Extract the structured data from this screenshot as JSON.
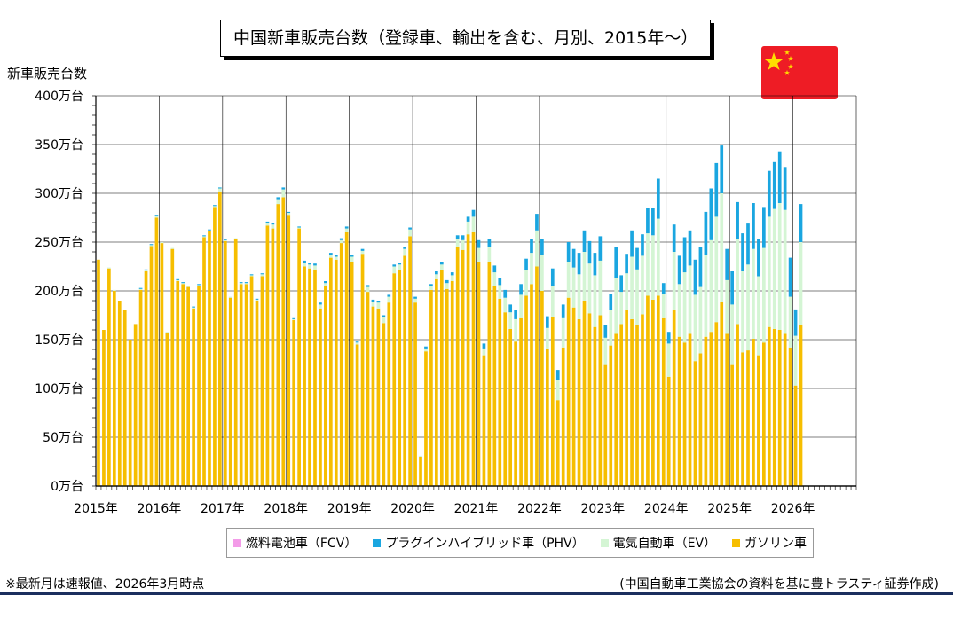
{
  "title": "中国新車販売台数（登録車、輸出を含む、月別、2015年～）",
  "note": "※最新月は速報値、2026年3月時点",
  "source": "(中国自動車工業協会の資料を基に豊トラスティ証券作成)",
  "colors": {
    "fcv": "#f39be8",
    "phv": "#1aa6e0",
    "ev": "#d4f5d4",
    "gasoline": "#f6be00",
    "grid": "#000000",
    "rule": "#1b2f5e",
    "flag_red": "#ee1c25",
    "flag_star": "#ffde00"
  },
  "chart_data": {
    "type": "bar",
    "stacked": true,
    "title": "中国新車販売台数（登録車、輸出を含む、月別、2015年～）",
    "ylabel": "新車販売台数",
    "xlabel": "",
    "ylim": [
      0,
      400
    ],
    "unit": "万台",
    "yticks": [
      0,
      50,
      100,
      150,
      200,
      250,
      300,
      350,
      400
    ],
    "ytick_labels": [
      "0万台",
      "50万台",
      "100万台",
      "150万台",
      "200万台",
      "250万台",
      "300万台",
      "350万台",
      "400万台"
    ],
    "x_start": "2015-01",
    "x_slots": 144,
    "year_labels": [
      "2015年",
      "2016年",
      "2017年",
      "2018年",
      "2019年",
      "2020年",
      "2021年",
      "2022年",
      "2023年",
      "2024年",
      "2025年",
      "2026年"
    ],
    "legend": [
      "燃料電池車（FCV）",
      "プラグインハイブリッド車（PHV）",
      "電気自動車（EV）",
      "ガソリン車"
    ],
    "legend_position": "bottom",
    "totals": [
      232,
      160,
      224,
      201,
      190,
      180,
      150,
      166,
      203,
      222,
      248,
      278,
      250,
      158,
      244,
      212,
      209,
      205,
      184,
      207,
      257,
      263,
      288,
      306,
      253,
      194,
      254,
      209,
      209,
      217,
      192,
      218,
      271,
      270,
      296,
      306,
      281,
      172,
      266,
      231,
      229,
      228,
      188,
      210,
      239,
      237,
      254,
      266,
      237,
      148,
      243,
      206,
      191,
      190,
      175,
      196,
      227,
      229,
      245,
      265,
      194,
      31,
      143,
      207,
      220,
      230,
      211,
      219,
      257,
      257,
      276,
      283,
      252,
      146,
      253,
      226,
      213,
      201,
      186,
      180,
      207,
      233,
      253,
      279,
      253,
      174,
      223,
      119,
      186,
      250,
      243,
      239,
      262,
      251,
      239,
      256,
      165,
      197,
      245,
      216,
      238,
      262,
      244,
      258,
      285,
      285,
      315,
      208,
      158,
      268,
      236,
      255,
      262,
      232,
      245,
      281,
      305,
      331,
      349,
      243,
      220,
      291,
      259,
      269,
      290,
      253,
      286,
      323,
      332,
      343,
      327,
      234,
      181,
      289
    ],
    "gasoline": [
      232,
      160,
      223,
      200,
      190,
      180,
      150,
      166,
      201,
      220,
      246,
      275,
      249,
      157,
      243,
      210,
      207,
      204,
      182,
      205,
      255,
      261,
      286,
      302,
      251,
      193,
      253,
      207,
      207,
      215,
      190,
      215,
      267,
      264,
      289,
      296,
      278,
      170,
      264,
      225,
      223,
      222,
      182,
      205,
      234,
      232,
      249,
      260,
      230,
      145,
      238,
      199,
      184,
      182,
      167,
      188,
      218,
      221,
      236,
      256,
      188,
      30,
      138,
      201,
      212,
      221,
      202,
      210,
      245,
      242,
      258,
      260,
      230,
      134,
      230,
      205,
      192,
      178,
      161,
      148,
      172,
      195,
      207,
      225,
      200,
      140,
      173,
      88,
      142,
      193,
      183,
      171,
      190,
      177,
      163,
      175,
      124,
      144,
      156,
      166,
      181,
      171,
      165,
      176,
      195,
      191,
      195,
      172,
      112,
      181,
      153,
      147,
      156,
      128,
      136,
      153,
      158,
      168,
      189,
      156,
      124,
      166,
      137,
      139,
      151,
      134,
      147,
      163,
      161,
      160,
      156,
      142,
      103,
      165
    ],
    "ev": [
      0,
      0,
      1,
      1,
      0,
      0,
      0,
      0,
      1,
      1,
      1,
      2,
      1,
      1,
      1,
      1,
      1,
      1,
      1,
      1,
      1,
      1,
      1,
      3,
      1,
      1,
      1,
      1,
      1,
      1,
      1,
      2,
      3,
      4,
      5,
      8,
      2,
      1,
      1,
      4,
      4,
      4,
      4,
      3,
      3,
      3,
      3,
      4,
      5,
      2,
      3,
      5,
      5,
      6,
      6,
      6,
      7,
      6,
      7,
      7,
      4,
      1,
      3,
      4,
      5,
      6,
      6,
      6,
      8,
      10,
      13,
      16,
      14,
      7,
      15,
      14,
      14,
      15,
      17,
      23,
      24,
      26,
      32,
      37,
      37,
      22,
      32,
      21,
      30,
      37,
      41,
      46,
      50,
      51,
      53,
      56,
      28,
      36,
      57,
      33,
      37,
      64,
      57,
      60,
      64,
      66,
      79,
      25,
      34,
      59,
      54,
      72,
      70,
      68,
      68,
      84,
      94,
      108,
      111,
      55,
      62,
      87,
      83,
      88,
      92,
      81,
      97,
      113,
      123,
      130,
      127,
      52,
      51,
      85
    ],
    "phv": [
      0,
      0,
      0,
      0,
      0,
      0,
      0,
      0,
      1,
      1,
      1,
      1,
      0,
      0,
      0,
      1,
      1,
      0,
      1,
      1,
      1,
      1,
      1,
      1,
      1,
      0,
      0,
      1,
      1,
      1,
      1,
      1,
      1,
      2,
      2,
      2,
      1,
      1,
      1,
      2,
      2,
      2,
      2,
      2,
      2,
      2,
      2,
      2,
      2,
      1,
      2,
      2,
      2,
      2,
      2,
      2,
      2,
      2,
      2,
      2,
      2,
      0,
      2,
      2,
      3,
      3,
      3,
      3,
      4,
      5,
      5,
      7,
      8,
      5,
      8,
      7,
      7,
      8,
      8,
      9,
      11,
      12,
      14,
      17,
      16,
      12,
      18,
      10,
      14,
      20,
      19,
      22,
      22,
      23,
      23,
      25,
      13,
      17,
      32,
      17,
      20,
      27,
      22,
      22,
      26,
      28,
      41,
      11,
      12,
      28,
      29,
      36,
      36,
      36,
      41,
      44,
      53,
      55,
      49,
      32,
      34,
      38,
      39,
      42,
      47,
      38,
      42,
      47,
      48,
      53,
      44,
      40,
      27,
      39
    ],
    "fcv": [
      0,
      0,
      0,
      0,
      0,
      0,
      0,
      0,
      0,
      0,
      0,
      0,
      0,
      0,
      0,
      0,
      0,
      0,
      0,
      0,
      0,
      0,
      0,
      0,
      0,
      0,
      0,
      0,
      0,
      0,
      0,
      0,
      0,
      0,
      0,
      0,
      0,
      0,
      0,
      0,
      0,
      0,
      0,
      0,
      0,
      0,
      0,
      0,
      0,
      0,
      0,
      0,
      0,
      0,
      0,
      0,
      0,
      0,
      0,
      0,
      0,
      0,
      0,
      0,
      0,
      0,
      0,
      0,
      0,
      0,
      0,
      0,
      0,
      0,
      0,
      0,
      0,
      0,
      0,
      0,
      0,
      0,
      0,
      0,
      0,
      0,
      0,
      0,
      0,
      0,
      0,
      0,
      0,
      0,
      0,
      0,
      0,
      0,
      0,
      0,
      0,
      0,
      0,
      0,
      0,
      0,
      0,
      0,
      0,
      0,
      0,
      0,
      0,
      0,
      0,
      0,
      0,
      0,
      0,
      0,
      0,
      0,
      0,
      0,
      0,
      0,
      0,
      0,
      0,
      0,
      0,
      0,
      0,
      0
    ]
  }
}
